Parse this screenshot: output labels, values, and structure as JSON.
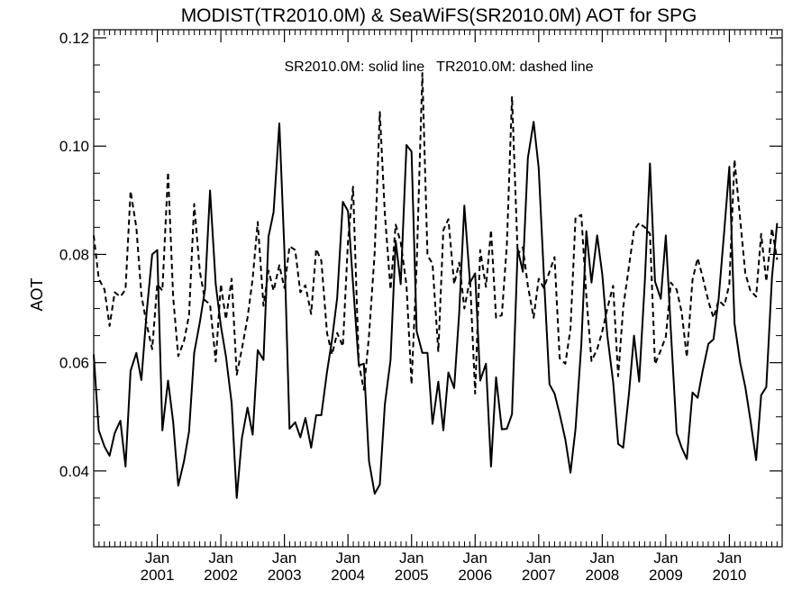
{
  "chart_data": {
    "type": "line",
    "title": "MODIST(TR2010.0M) & SeaWiFS(SR2010.0M)  AOT for SPG",
    "annotation": "SR2010.0M: solid line   TR2010.0M: dashed line",
    "ylabel": "AOT",
    "xlabel": "",
    "xlim": [
      2000.0,
      2010.83
    ],
    "ylim": [
      0.026,
      0.1215
    ],
    "yticks": [
      0.04,
      0.06,
      0.08,
      0.1,
      0.12
    ],
    "ytick_labels": [
      "0.04",
      "0.06",
      "0.08",
      "0.10",
      "0.12"
    ],
    "xticks": [
      {
        "month": "Jan",
        "year": "2001",
        "x": 2001
      },
      {
        "month": "Jan",
        "year": "2002",
        "x": 2002
      },
      {
        "month": "Jan",
        "year": "2003",
        "x": 2003
      },
      {
        "month": "Jan",
        "year": "2004",
        "x": 2004
      },
      {
        "month": "Jan",
        "year": "2005",
        "x": 2005
      },
      {
        "month": "Jan",
        "year": "2006",
        "x": 2006
      },
      {
        "month": "Jan",
        "year": "2007",
        "x": 2007
      },
      {
        "month": "Jan",
        "year": "2008",
        "x": 2008
      },
      {
        "month": "Jan",
        "year": "2009",
        "x": 2009
      },
      {
        "month": "Jan",
        "year": "2010",
        "x": 2010
      }
    ],
    "grid": false,
    "series": [
      {
        "name": "SR2010.0M",
        "style": "solid",
        "color": "#000000",
        "points": [
          [
            2000.0,
            0.0615
          ],
          [
            2000.08,
            0.0475
          ],
          [
            2000.17,
            0.0445
          ],
          [
            2000.25,
            0.0428
          ],
          [
            2000.33,
            0.047
          ],
          [
            2000.42,
            0.0493
          ],
          [
            2000.5,
            0.0408
          ],
          [
            2000.58,
            0.0585
          ],
          [
            2000.67,
            0.0618
          ],
          [
            2000.75,
            0.0568
          ],
          [
            2000.83,
            0.069
          ],
          [
            2000.92,
            0.08
          ],
          [
            2001.0,
            0.0808
          ],
          [
            2001.08,
            0.0475
          ],
          [
            2001.17,
            0.0567
          ],
          [
            2001.25,
            0.049
          ],
          [
            2001.33,
            0.0373
          ],
          [
            2001.42,
            0.0418
          ],
          [
            2001.5,
            0.0473
          ],
          [
            2001.58,
            0.0618
          ],
          [
            2001.67,
            0.0675
          ],
          [
            2001.75,
            0.0735
          ],
          [
            2001.83,
            0.0918
          ],
          [
            2001.92,
            0.0745
          ],
          [
            2002.0,
            0.0668
          ],
          [
            2002.08,
            0.0612
          ],
          [
            2002.17,
            0.0525
          ],
          [
            2002.25,
            0.035
          ],
          [
            2002.33,
            0.046
          ],
          [
            2002.42,
            0.0517
          ],
          [
            2002.5,
            0.0467
          ],
          [
            2002.58,
            0.0623
          ],
          [
            2002.67,
            0.0605
          ],
          [
            2002.75,
            0.0833
          ],
          [
            2002.83,
            0.0878
          ],
          [
            2002.92,
            0.1042
          ],
          [
            2003.0,
            0.0808
          ],
          [
            2003.08,
            0.0478
          ],
          [
            2003.17,
            0.049
          ],
          [
            2003.25,
            0.0462
          ],
          [
            2003.33,
            0.0498
          ],
          [
            2003.42,
            0.0443
          ],
          [
            2003.5,
            0.0503
          ],
          [
            2003.58,
            0.0503
          ],
          [
            2003.67,
            0.0583
          ],
          [
            2003.75,
            0.0643
          ],
          [
            2003.83,
            0.072
          ],
          [
            2003.92,
            0.0897
          ],
          [
            2004.0,
            0.088
          ],
          [
            2004.08,
            0.0745
          ],
          [
            2004.17,
            0.0595
          ],
          [
            2004.25,
            0.0598
          ],
          [
            2004.33,
            0.0418
          ],
          [
            2004.42,
            0.0358
          ],
          [
            2004.5,
            0.0375
          ],
          [
            2004.58,
            0.0523
          ],
          [
            2004.67,
            0.0605
          ],
          [
            2004.75,
            0.0825
          ],
          [
            2004.83,
            0.0745
          ],
          [
            2004.92,
            0.1002
          ],
          [
            2005.0,
            0.099
          ],
          [
            2005.08,
            0.0658
          ],
          [
            2005.17,
            0.0618
          ],
          [
            2005.25,
            0.0618
          ],
          [
            2005.33,
            0.0487
          ],
          [
            2005.42,
            0.0565
          ],
          [
            2005.5,
            0.0475
          ],
          [
            2005.58,
            0.0582
          ],
          [
            2005.67,
            0.0553
          ],
          [
            2005.75,
            0.0692
          ],
          [
            2005.83,
            0.089
          ],
          [
            2005.92,
            0.0748
          ],
          [
            2006.0,
            0.0765
          ],
          [
            2006.08,
            0.0567
          ],
          [
            2006.17,
            0.0598
          ],
          [
            2006.25,
            0.0408
          ],
          [
            2006.33,
            0.0573
          ],
          [
            2006.42,
            0.0477
          ],
          [
            2006.5,
            0.0478
          ],
          [
            2006.58,
            0.0505
          ],
          [
            2006.67,
            0.081
          ],
          [
            2006.75,
            0.0768
          ],
          [
            2006.83,
            0.0978
          ],
          [
            2006.92,
            0.1045
          ],
          [
            2007.0,
            0.096
          ],
          [
            2007.08,
            0.0763
          ],
          [
            2007.17,
            0.056
          ],
          [
            2007.25,
            0.0543
          ],
          [
            2007.33,
            0.0505
          ],
          [
            2007.42,
            0.0458
          ],
          [
            2007.5,
            0.0397
          ],
          [
            2007.58,
            0.0478
          ],
          [
            2007.67,
            0.0633
          ],
          [
            2007.75,
            0.0843
          ],
          [
            2007.83,
            0.0748
          ],
          [
            2007.92,
            0.0835
          ],
          [
            2008.0,
            0.0763
          ],
          [
            2008.08,
            0.065
          ],
          [
            2008.17,
            0.0565
          ],
          [
            2008.25,
            0.045
          ],
          [
            2008.33,
            0.0443
          ],
          [
            2008.42,
            0.0543
          ],
          [
            2008.5,
            0.065
          ],
          [
            2008.58,
            0.0565
          ],
          [
            2008.67,
            0.075
          ],
          [
            2008.75,
            0.0968
          ],
          [
            2008.83,
            0.075
          ],
          [
            2008.92,
            0.0718
          ],
          [
            2009.0,
            0.0835
          ],
          [
            2009.08,
            0.0658
          ],
          [
            2009.17,
            0.047
          ],
          [
            2009.25,
            0.0443
          ],
          [
            2009.33,
            0.0422
          ],
          [
            2009.42,
            0.0545
          ],
          [
            2009.5,
            0.0535
          ],
          [
            2009.58,
            0.0585
          ],
          [
            2009.67,
            0.0635
          ],
          [
            2009.75,
            0.0643
          ],
          [
            2009.83,
            0.0718
          ],
          [
            2009.92,
            0.0845
          ],
          [
            2010.0,
            0.0962
          ],
          [
            2010.08,
            0.0673
          ],
          [
            2010.17,
            0.06
          ],
          [
            2010.25,
            0.0555
          ],
          [
            2010.33,
            0.0495
          ],
          [
            2010.42,
            0.042
          ],
          [
            2010.5,
            0.054
          ],
          [
            2010.58,
            0.0555
          ],
          [
            2010.67,
            0.0758
          ],
          [
            2010.75,
            0.0858
          ]
        ]
      },
      {
        "name": "TR2010.0M",
        "style": "dashed",
        "color": "#000000",
        "points": [
          [
            2000.0,
            0.0835
          ],
          [
            2000.08,
            0.0755
          ],
          [
            2000.17,
            0.0735
          ],
          [
            2000.25,
            0.0668
          ],
          [
            2000.33,
            0.073
          ],
          [
            2000.42,
            0.0722
          ],
          [
            2000.5,
            0.0735
          ],
          [
            2000.58,
            0.0917
          ],
          [
            2000.67,
            0.085
          ],
          [
            2000.75,
            0.0725
          ],
          [
            2000.83,
            0.0672
          ],
          [
            2000.92,
            0.0625
          ],
          [
            2001.0,
            0.0745
          ],
          [
            2001.08,
            0.0733
          ],
          [
            2001.17,
            0.0952
          ],
          [
            2001.25,
            0.072
          ],
          [
            2001.33,
            0.0612
          ],
          [
            2001.42,
            0.064
          ],
          [
            2001.5,
            0.0688
          ],
          [
            2001.58,
            0.0893
          ],
          [
            2001.67,
            0.0768
          ],
          [
            2001.75,
            0.0715
          ],
          [
            2001.83,
            0.0708
          ],
          [
            2001.92,
            0.0602
          ],
          [
            2002.0,
            0.0745
          ],
          [
            2002.08,
            0.068
          ],
          [
            2002.17,
            0.0755
          ],
          [
            2002.25,
            0.0578
          ],
          [
            2002.33,
            0.0625
          ],
          [
            2002.42,
            0.0683
          ],
          [
            2002.5,
            0.0755
          ],
          [
            2002.58,
            0.086
          ],
          [
            2002.67,
            0.0705
          ],
          [
            2002.75,
            0.077
          ],
          [
            2002.83,
            0.0733
          ],
          [
            2002.92,
            0.078
          ],
          [
            2003.0,
            0.0738
          ],
          [
            2003.08,
            0.0815
          ],
          [
            2003.17,
            0.0808
          ],
          [
            2003.25,
            0.073
          ],
          [
            2003.33,
            0.0743
          ],
          [
            2003.42,
            0.069
          ],
          [
            2003.5,
            0.081
          ],
          [
            2003.58,
            0.0788
          ],
          [
            2003.67,
            0.0655
          ],
          [
            2003.75,
            0.0615
          ],
          [
            2003.83,
            0.0655
          ],
          [
            2003.92,
            0.063
          ],
          [
            2004.0,
            0.0825
          ],
          [
            2004.08,
            0.0925
          ],
          [
            2004.17,
            0.0598
          ],
          [
            2004.25,
            0.055
          ],
          [
            2004.33,
            0.065
          ],
          [
            2004.42,
            0.0803
          ],
          [
            2004.5,
            0.1063
          ],
          [
            2004.58,
            0.0875
          ],
          [
            2004.67,
            0.0735
          ],
          [
            2004.75,
            0.0855
          ],
          [
            2004.83,
            0.0822
          ],
          [
            2004.92,
            0.0743
          ],
          [
            2005.0,
            0.056
          ],
          [
            2005.08,
            0.078
          ],
          [
            2005.17,
            0.1135
          ],
          [
            2005.25,
            0.0798
          ],
          [
            2005.33,
            0.0783
          ],
          [
            2005.42,
            0.062
          ],
          [
            2005.5,
            0.0845
          ],
          [
            2005.58,
            0.0865
          ],
          [
            2005.67,
            0.0745
          ],
          [
            2005.75,
            0.0785
          ],
          [
            2005.83,
            0.07
          ],
          [
            2005.92,
            0.0755
          ],
          [
            2006.0,
            0.0543
          ],
          [
            2006.08,
            0.0808
          ],
          [
            2006.17,
            0.074
          ],
          [
            2006.25,
            0.0845
          ],
          [
            2006.33,
            0.0683
          ],
          [
            2006.42,
            0.0688
          ],
          [
            2006.5,
            0.0818
          ],
          [
            2006.58,
            0.1092
          ],
          [
            2006.67,
            0.08
          ],
          [
            2006.75,
            0.0813
          ],
          [
            2006.83,
            0.0742
          ],
          [
            2006.92,
            0.0683
          ],
          [
            2007.0,
            0.0755
          ],
          [
            2007.08,
            0.0738
          ],
          [
            2007.17,
            0.0768
          ],
          [
            2007.25,
            0.0795
          ],
          [
            2007.33,
            0.0608
          ],
          [
            2007.42,
            0.0598
          ],
          [
            2007.5,
            0.0663
          ],
          [
            2007.58,
            0.0868
          ],
          [
            2007.67,
            0.0873
          ],
          [
            2007.75,
            0.0723
          ],
          [
            2007.83,
            0.0603
          ],
          [
            2007.92,
            0.0625
          ],
          [
            2008.0,
            0.0658
          ],
          [
            2008.08,
            0.07
          ],
          [
            2008.17,
            0.0742
          ],
          [
            2008.25,
            0.0575
          ],
          [
            2008.33,
            0.0702
          ],
          [
            2008.42,
            0.0778
          ],
          [
            2008.5,
            0.0845
          ],
          [
            2008.58,
            0.0858
          ],
          [
            2008.67,
            0.085
          ],
          [
            2008.75,
            0.0838
          ],
          [
            2008.83,
            0.0597
          ],
          [
            2008.92,
            0.0623
          ],
          [
            2009.0,
            0.0648
          ],
          [
            2009.08,
            0.0748
          ],
          [
            2009.17,
            0.0735
          ],
          [
            2009.25,
            0.0693
          ],
          [
            2009.33,
            0.061
          ],
          [
            2009.42,
            0.0753
          ],
          [
            2009.5,
            0.0793
          ],
          [
            2009.58,
            0.0758
          ],
          [
            2009.67,
            0.0713
          ],
          [
            2009.75,
            0.0683
          ],
          [
            2009.83,
            0.0715
          ],
          [
            2009.92,
            0.0705
          ],
          [
            2010.0,
            0.0745
          ],
          [
            2010.08,
            0.0975
          ],
          [
            2010.17,
            0.0865
          ],
          [
            2010.25,
            0.0765
          ],
          [
            2010.33,
            0.0733
          ],
          [
            2010.42,
            0.0722
          ],
          [
            2010.5,
            0.0838
          ],
          [
            2010.58,
            0.075
          ],
          [
            2010.67,
            0.0848
          ],
          [
            2010.75,
            0.079
          ]
        ]
      }
    ]
  }
}
